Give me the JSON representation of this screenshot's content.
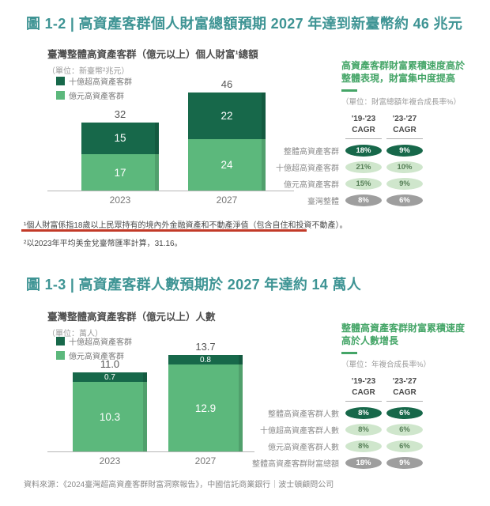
{
  "figure1": {
    "title": "圖 1-2 | 高資產客群個人財富總額預期 2027 年達到新臺幣約 46 兆元",
    "panel": {
      "heading_line1": "高資產客群財富累積速度高於",
      "heading_line2": "整體表現，財富集中度提高",
      "unit": "（單位：財富總額年複合成長率%）",
      "rows": [
        {
          "label": "整體高資產客群",
          "v1": "18%",
          "v2": "9%"
        },
        {
          "label": "十億超高資產客群",
          "v1": "21%",
          "v2": "10%"
        },
        {
          "label": "億元高資產客群",
          "v1": "15%",
          "v2": "9%"
        },
        {
          "label": "臺灣整體",
          "v1": "8%",
          "v2": "6%"
        }
      ]
    }
  },
  "figure2": {
    "title": "圖 1-3 | 高資產客群人數預期於 2027 年達約 14 萬人",
    "panel": {
      "heading_line1": "整體高資產客群財富累積速度",
      "heading_line2": "高於人數增長",
      "unit": "（單位：年複合成長率%）",
      "rows": [
        {
          "label": "整體高資產客群人數",
          "v1": "8%",
          "v2": "6%"
        },
        {
          "label": "十億超高資產客群人數",
          "v1": "8%",
          "v2": "6%"
        },
        {
          "label": "億元高資產客群人數",
          "v1": "8%",
          "v2": "6%"
        },
        {
          "label": "整體高資產客群財富總額",
          "v1": "18%",
          "v2": "9%"
        }
      ]
    }
  },
  "headers": {
    "period1": "'19-'23",
    "period2": "'23-'27",
    "cagr": "CAGR"
  },
  "chart_data": [
    {
      "type": "bar",
      "stacked": true,
      "title": "臺灣整體高資產客群（億元以上）個人財富¹總額",
      "unit": "（單位：新臺幣²兆元）",
      "categories": [
        "2023",
        "2027"
      ],
      "series": [
        {
          "name": "十億超高資產客群",
          "color": "#17684a",
          "values": [
            15,
            22
          ]
        },
        {
          "name": "億元高資產客群",
          "color": "#5cb87c",
          "values": [
            17,
            24
          ]
        }
      ],
      "totals": [
        32,
        46
      ],
      "legend_position": "top-left",
      "grid": false
    },
    {
      "type": "bar",
      "stacked": true,
      "title": "臺灣整體高資產客群（億元以上）人數",
      "unit": "（單位：萬人）",
      "categories": [
        "2023",
        "2027"
      ],
      "series": [
        {
          "name": "十億超高資產客群",
          "color": "#17684a",
          "values": [
            "0.7",
            "0.8"
          ]
        },
        {
          "name": "億元高資產客群",
          "color": "#5cb87c",
          "values": [
            "10.3",
            "12.9"
          ]
        }
      ],
      "totals": [
        "11.0",
        "13.7"
      ],
      "legend_position": "top-left",
      "grid": false
    }
  ],
  "footnotes": {
    "note1": "¹個人財富係指18歲以上民眾持有的境內外金融資產和不動產淨值（包含自住和投資不動產）。",
    "note2": "²以2023年平均美金兌臺幣匯率計算，31.16。"
  },
  "source": "資料來源：《2024臺灣超高資產客群財富洞察報告》，中國信託商業銀行｜波士頓顧問公司",
  "colors": {
    "title_teal": "#3e9494",
    "dark_green": "#17684a",
    "light_green": "#5cb87c",
    "pale_pill": "#cfe6cc",
    "gray_pill": "#9e9e9e",
    "panel_green": "#44a567",
    "red_underline": "#c23a28"
  }
}
